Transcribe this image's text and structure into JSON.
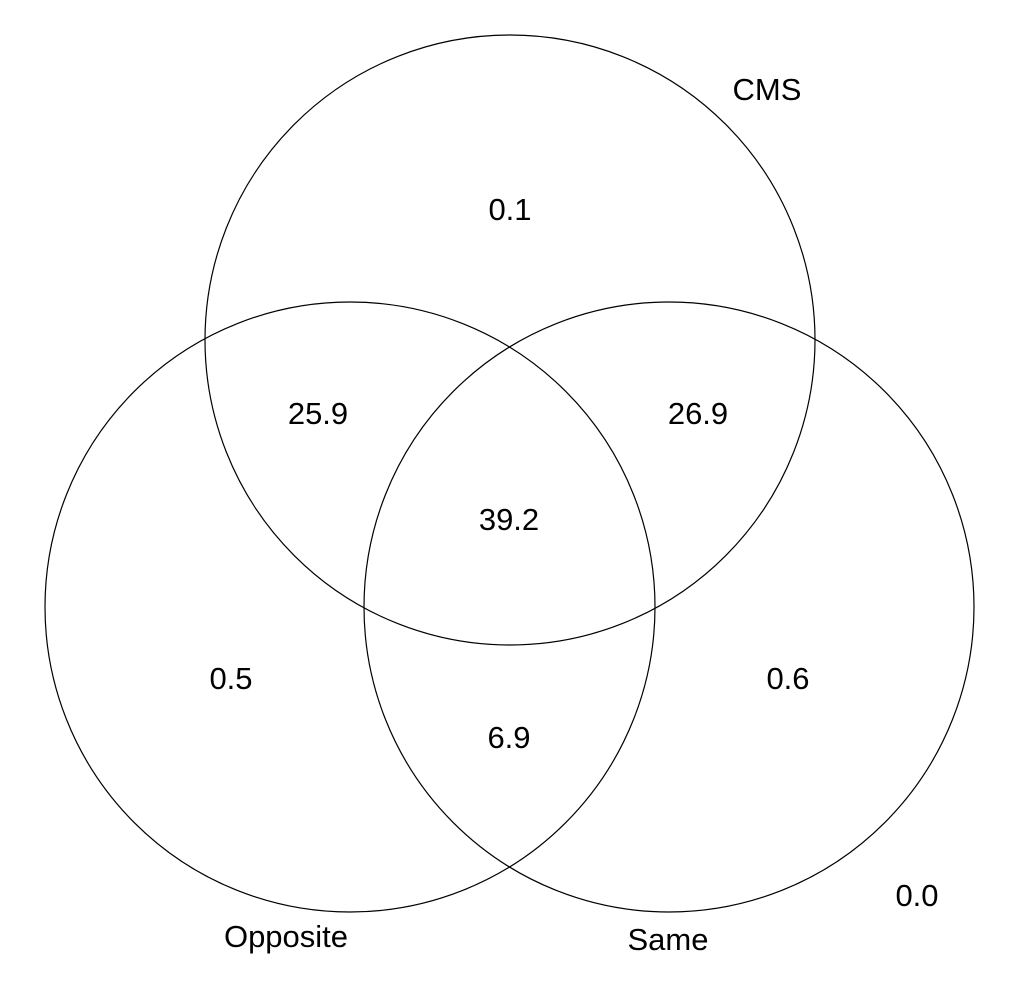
{
  "sets": [
    {
      "label": "CMS"
    },
    {
      "label": "Opposite"
    },
    {
      "label": "Same"
    }
  ],
  "regions": [
    {
      "label": "0.1"
    },
    {
      "label": "25.9"
    },
    {
      "label": "26.9"
    },
    {
      "label": "39.2"
    },
    {
      "label": "0.5"
    },
    {
      "label": "0.6"
    },
    {
      "label": "6.9"
    },
    {
      "label": "0.0"
    }
  ]
}
